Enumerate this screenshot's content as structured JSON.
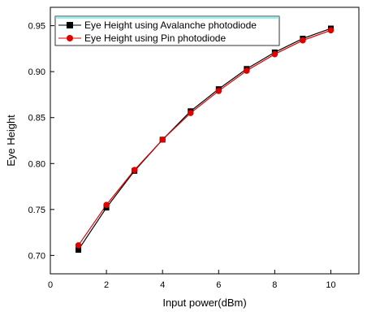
{
  "chart_data": {
    "type": "line",
    "title": "",
    "xlabel": "Input power(dBm)",
    "ylabel": "Eye Height",
    "xlim": [
      0,
      11
    ],
    "ylim": [
      0.68,
      0.97
    ],
    "xticks": [
      0,
      2,
      4,
      6,
      8,
      10
    ],
    "yticks": [
      0.7,
      0.75,
      0.8,
      0.85,
      0.9,
      0.95
    ],
    "x": [
      1,
      2,
      3,
      4,
      5,
      6,
      7,
      8,
      9,
      10
    ],
    "legend_position": "top-left",
    "grid": false,
    "series": [
      {
        "name": "Eye Height using Avalanche photodiode",
        "color": "#000000",
        "marker": "square",
        "values": [
          0.706,
          0.752,
          0.792,
          0.826,
          0.857,
          0.881,
          0.903,
          0.921,
          0.936,
          0.947
        ]
      },
      {
        "name": "Eye Height using Pin photodiode",
        "color": "#e00000",
        "marker": "circle",
        "values": [
          0.711,
          0.755,
          0.793,
          0.826,
          0.855,
          0.879,
          0.901,
          0.919,
          0.934,
          0.945
        ]
      }
    ]
  }
}
